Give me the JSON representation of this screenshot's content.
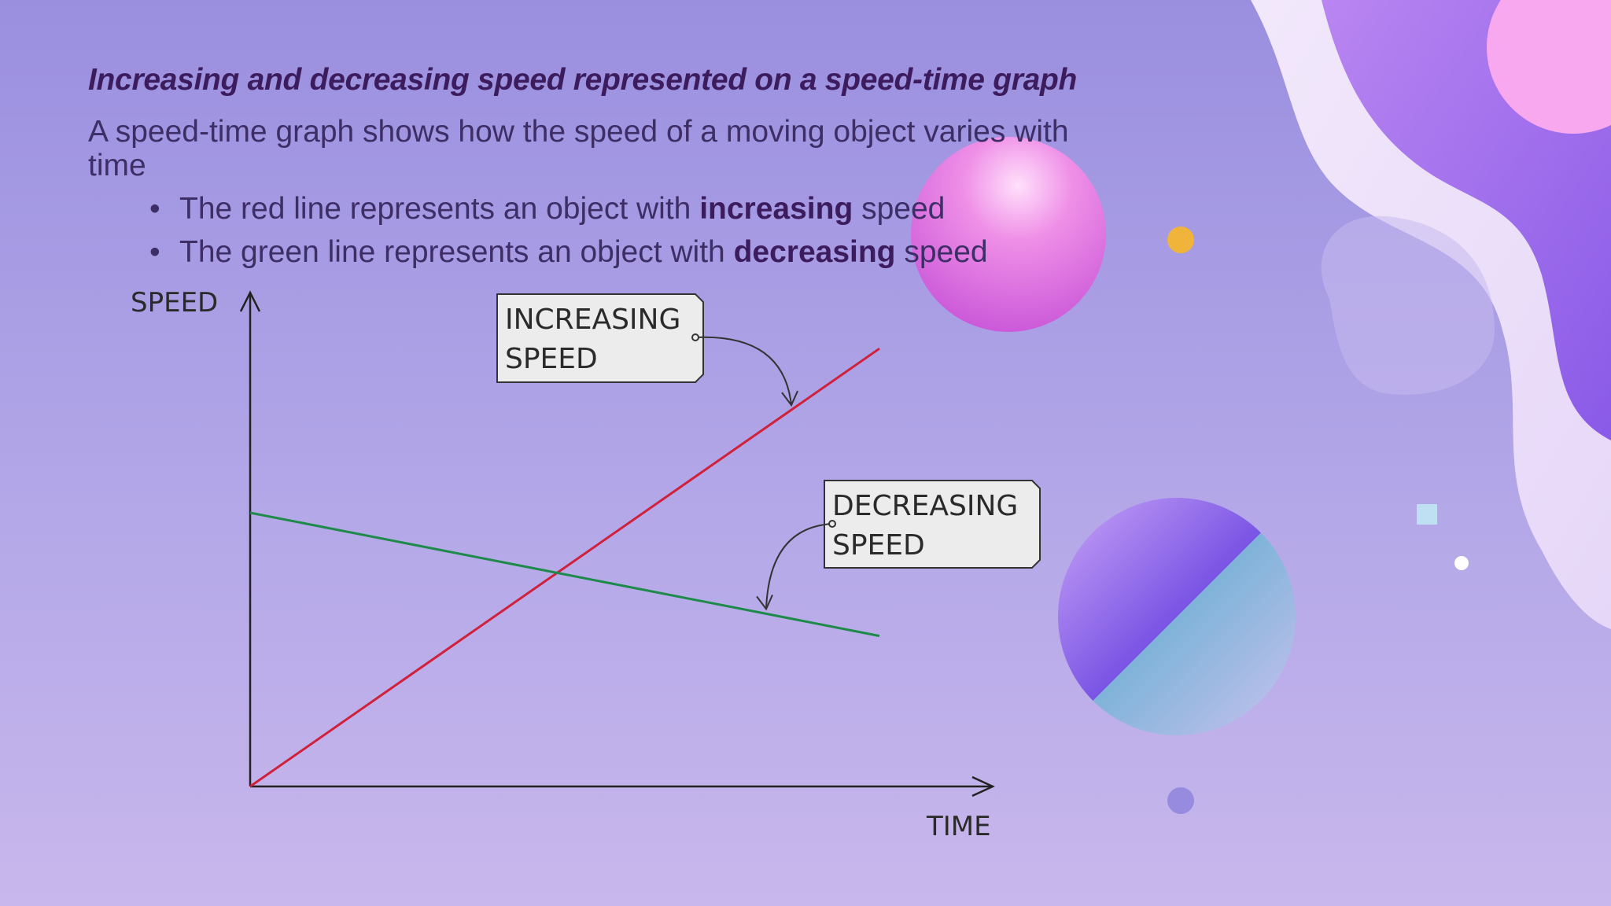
{
  "slide": {
    "title": "Increasing and decreasing speed represented on a speed-time graph",
    "intro": "A speed-time graph shows how the speed of a moving object varies with time",
    "bullets": [
      {
        "prefix": "The red line represents an object with ",
        "bold": "increasing",
        "suffix": " speed"
      },
      {
        "prefix": "The green line represents an object with ",
        "bold": "decreasing",
        "suffix": " speed"
      }
    ]
  },
  "chart_data": {
    "type": "line",
    "xlabel": "TIME",
    "ylabel": "SPEED",
    "xlim": [
      0,
      10
    ],
    "ylim": [
      0,
      10
    ],
    "grid": false,
    "series": [
      {
        "name": "INCREASING SPEED",
        "color": "#d0213b",
        "x": [
          0,
          10
        ],
        "y": [
          0,
          9.6
        ]
      },
      {
        "name": "DECREASING SPEED",
        "color": "#1e8a4a",
        "x": [
          0,
          10
        ],
        "y": [
          6,
          3.3
        ]
      }
    ],
    "annotations": [
      {
        "line1": "INCREASING",
        "line2": "SPEED",
        "points_to": 0
      },
      {
        "line1": "DECREASING",
        "line2": "SPEED",
        "points_to": 1
      }
    ]
  },
  "colors": {
    "title": "#3c1c5c",
    "text": "#3d2e66",
    "increasing_line": "#d0213b",
    "decreasing_line": "#1e8a4a"
  }
}
